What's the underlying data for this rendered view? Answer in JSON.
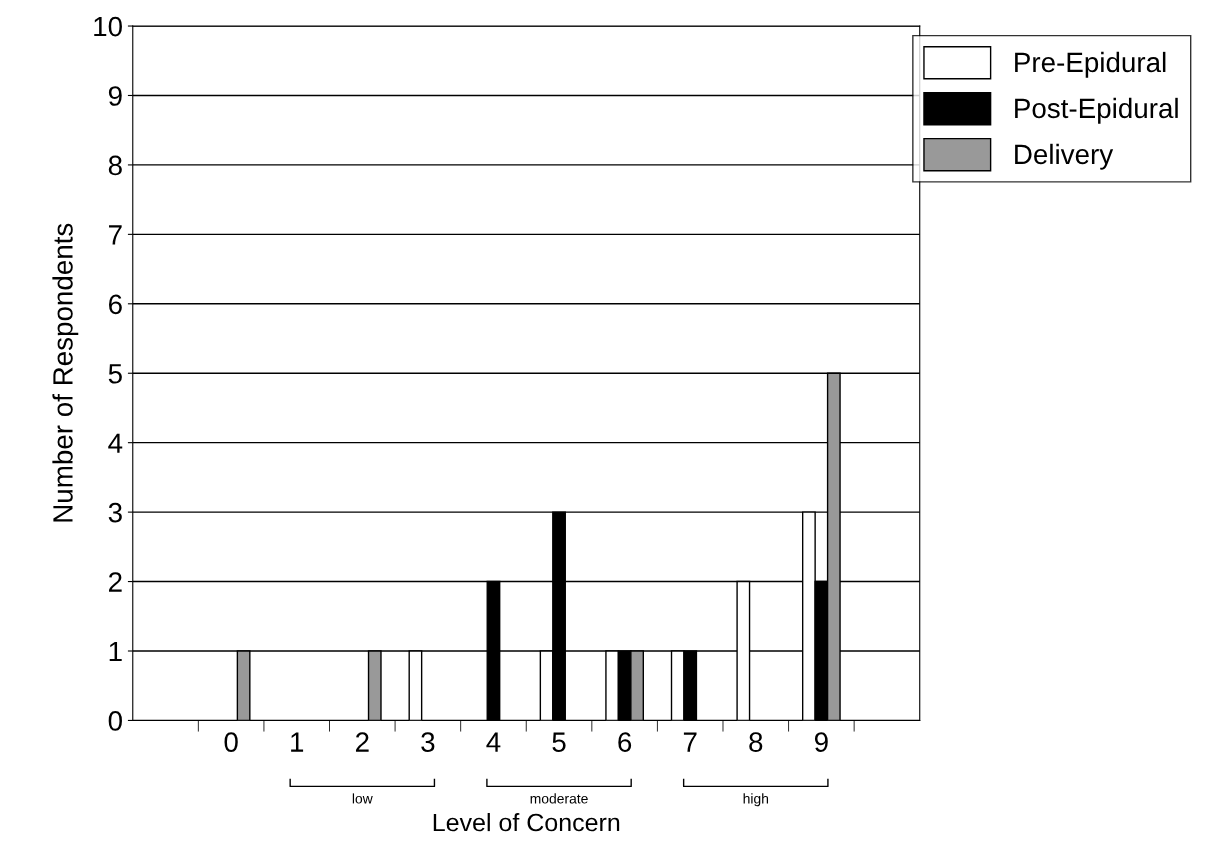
{
  "chart_data": {
    "type": "bar",
    "xlabel": "Level of Concern",
    "ylabel": "Number of Respondents",
    "categories": [
      null,
      "0",
      "1",
      "2",
      "3",
      "4",
      "5",
      "6",
      "7",
      "8",
      "9",
      null
    ],
    "series": [
      {
        "name": "Pre-Epidural",
        "color": "#ffffff",
        "values": [
          null,
          null,
          null,
          null,
          1,
          null,
          1,
          1,
          1,
          2,
          3,
          null
        ]
      },
      {
        "name": "Post-Epidural",
        "color": "#000000",
        "values": [
          null,
          null,
          null,
          null,
          null,
          2,
          3,
          1,
          1,
          null,
          2,
          null
        ]
      },
      {
        "name": "Delivery",
        "color": "#999999",
        "values": [
          null,
          1,
          null,
          1,
          null,
          null,
          null,
          1,
          null,
          null,
          5,
          null
        ]
      }
    ],
    "annotations": [
      "low",
      "moderate",
      "high"
    ],
    "ylim": [
      0,
      10
    ],
    "yticks": [
      0,
      1,
      2,
      3,
      4,
      5,
      6,
      7,
      8,
      9,
      10
    ],
    "grid": "y",
    "legend": "top right"
  }
}
